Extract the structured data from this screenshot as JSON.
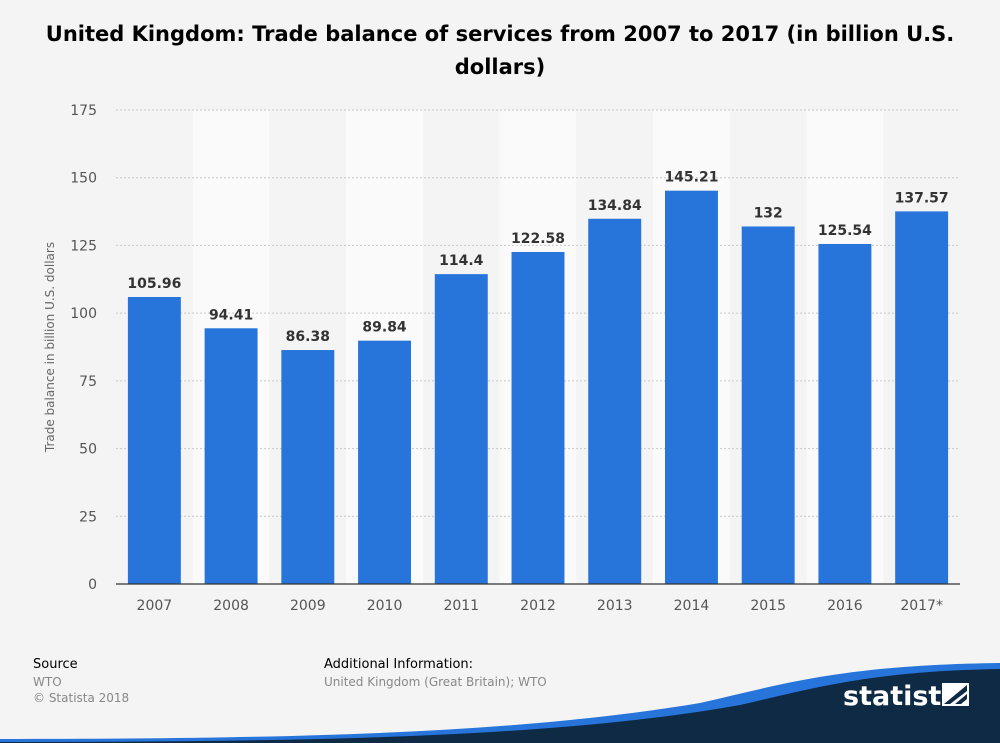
{
  "chart_data": {
    "type": "bar",
    "title": "United Kingdom: Trade balance of services from 2007 to 2017 (in billion U.S. dollars)",
    "ylabel": "Trade balance in billion U.S. dollars",
    "categories": [
      "2007",
      "2008",
      "2009",
      "2010",
      "2011",
      "2012",
      "2013",
      "2014",
      "2015",
      "2016",
      "2017*"
    ],
    "values": [
      105.96,
      94.41,
      86.38,
      89.84,
      114.4,
      122.58,
      134.84,
      145.21,
      132,
      125.54,
      137.57
    ],
    "value_labels": [
      "105.96",
      "94.41",
      "86.38",
      "89.84",
      "114.4",
      "122.58",
      "134.84",
      "145.21",
      "132",
      "125.54",
      "137.57"
    ],
    "ylim": [
      0,
      175
    ],
    "yticks": [
      0,
      25,
      50,
      75,
      100,
      125,
      150,
      175
    ],
    "grid": true,
    "bar_color": "#2775db"
  },
  "footer": {
    "source_label": "Source",
    "source_value": "WTO",
    "copyright": "© Statista 2018",
    "info_label": "Additional Information:",
    "info_value": "United Kingdom (Great Britain); WTO"
  },
  "brand": {
    "name": "statista",
    "dark_color": "#0f2a44",
    "accent_color": "#2775db"
  }
}
